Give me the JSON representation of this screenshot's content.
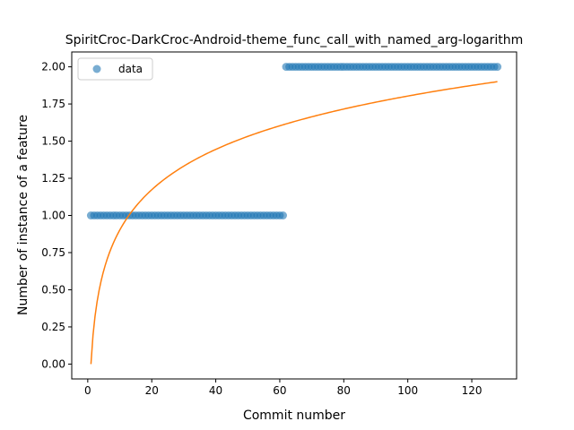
{
  "chart_data": {
    "type": "scatter",
    "title": "SpiritCroc-DarkCroc-Android-theme_func_call_with_named_arg-logarithm",
    "xlabel": "Commit number",
    "ylabel": "Number of instance of a feature",
    "xlim": [
      -5,
      134
    ],
    "ylim": [
      -0.1,
      2.1
    ],
    "x_ticks": [
      0,
      20,
      40,
      60,
      80,
      100,
      120
    ],
    "y_ticks": [
      0.0,
      0.25,
      0.5,
      0.75,
      1.0,
      1.25,
      1.5,
      1.75,
      2.0
    ],
    "x_tick_labels": [
      "0",
      "20",
      "40",
      "60",
      "80",
      "100",
      "120"
    ],
    "y_tick_labels": [
      "0.00",
      "0.25",
      "0.50",
      "0.75",
      "1.00",
      "1.25",
      "1.50",
      "1.75",
      "2.00"
    ],
    "legend": {
      "position": "top-left",
      "entries": [
        "data"
      ]
    },
    "grid": false,
    "series": [
      {
        "name": "data",
        "kind": "scatter",
        "color": "#1f77b4",
        "segments": [
          {
            "x_from": 1,
            "x_to": 61,
            "y": 1
          },
          {
            "x_from": 62,
            "x_to": 128,
            "y": 2
          }
        ]
      },
      {
        "kind": "line",
        "color": "#ff7f0e",
        "model": "logarithmic fit",
        "x_range": [
          1,
          128
        ],
        "y_start": 0.0,
        "y_end": 1.9
      }
    ]
  }
}
